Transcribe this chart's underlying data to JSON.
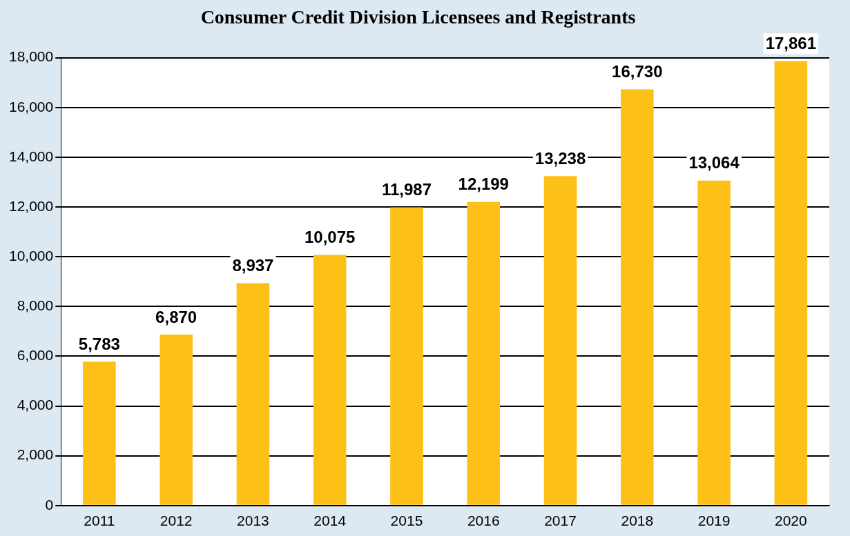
{
  "chart_data": {
    "type": "bar",
    "title": "Consumer Credit Division Licensees and Registrants",
    "categories": [
      "2011",
      "2012",
      "2013",
      "2014",
      "2015",
      "2016",
      "2017",
      "2018",
      "2019",
      "2020"
    ],
    "values": [
      5783,
      6870,
      8937,
      10075,
      11987,
      12199,
      13238,
      16730,
      13064,
      17861
    ],
    "value_labels": [
      "5,783",
      "6,870",
      "8,937",
      "10,075",
      "11,987",
      "12,199",
      "13,238",
      "16,730",
      "13,064",
      "17,861"
    ],
    "color": "#fcc016",
    "ylim": [
      0,
      18000
    ],
    "yticks": [
      0,
      {
        "value": 2000,
        "label": "2,000"
      },
      {
        "value": 4000,
        "label": "4,000"
      },
      {
        "value": 6000,
        "label": "6,000"
      },
      {
        "value": 8000,
        "label": "8,000"
      },
      {
        "value": 10000,
        "label": "10,000"
      },
      {
        "value": 12000,
        "label": "12,000"
      },
      {
        "value": 14000,
        "label": "14,000"
      },
      {
        "value": 16000,
        "label": "16,000"
      },
      {
        "value": 18000,
        "label": "18,000"
      }
    ],
    "grid": "y",
    "legend": false
  }
}
